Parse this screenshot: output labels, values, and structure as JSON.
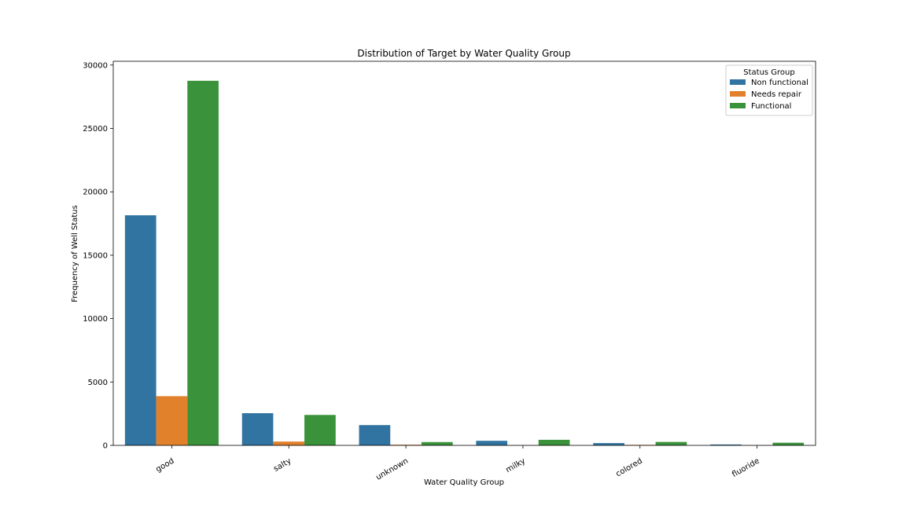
{
  "chart_data": {
    "type": "bar",
    "title": "Distribution of Target by Water Quality Group",
    "xlabel": "Water Quality Group",
    "ylabel": "Frequency of Well Status",
    "categories": [
      "good",
      "salty",
      "unknown",
      "milky",
      "colored",
      "fluoride"
    ],
    "series": [
      {
        "name": "Non functional",
        "color": "#3274a1",
        "values": [
          18150,
          2540,
          1600,
          360,
          180,
          70
        ]
      },
      {
        "name": "Needs repair",
        "color": "#e1812c",
        "values": [
          3880,
          300,
          50,
          10,
          40,
          10
        ]
      },
      {
        "name": "Functional",
        "color": "#3a923a",
        "values": [
          28760,
          2400,
          260,
          440,
          270,
          210
        ]
      }
    ],
    "ylim": [
      0,
      30300
    ],
    "yticks": [
      0,
      5000,
      10000,
      15000,
      20000,
      25000,
      30000
    ],
    "legend": {
      "title": "Status Group",
      "position": "top-right"
    },
    "grid": false
  }
}
